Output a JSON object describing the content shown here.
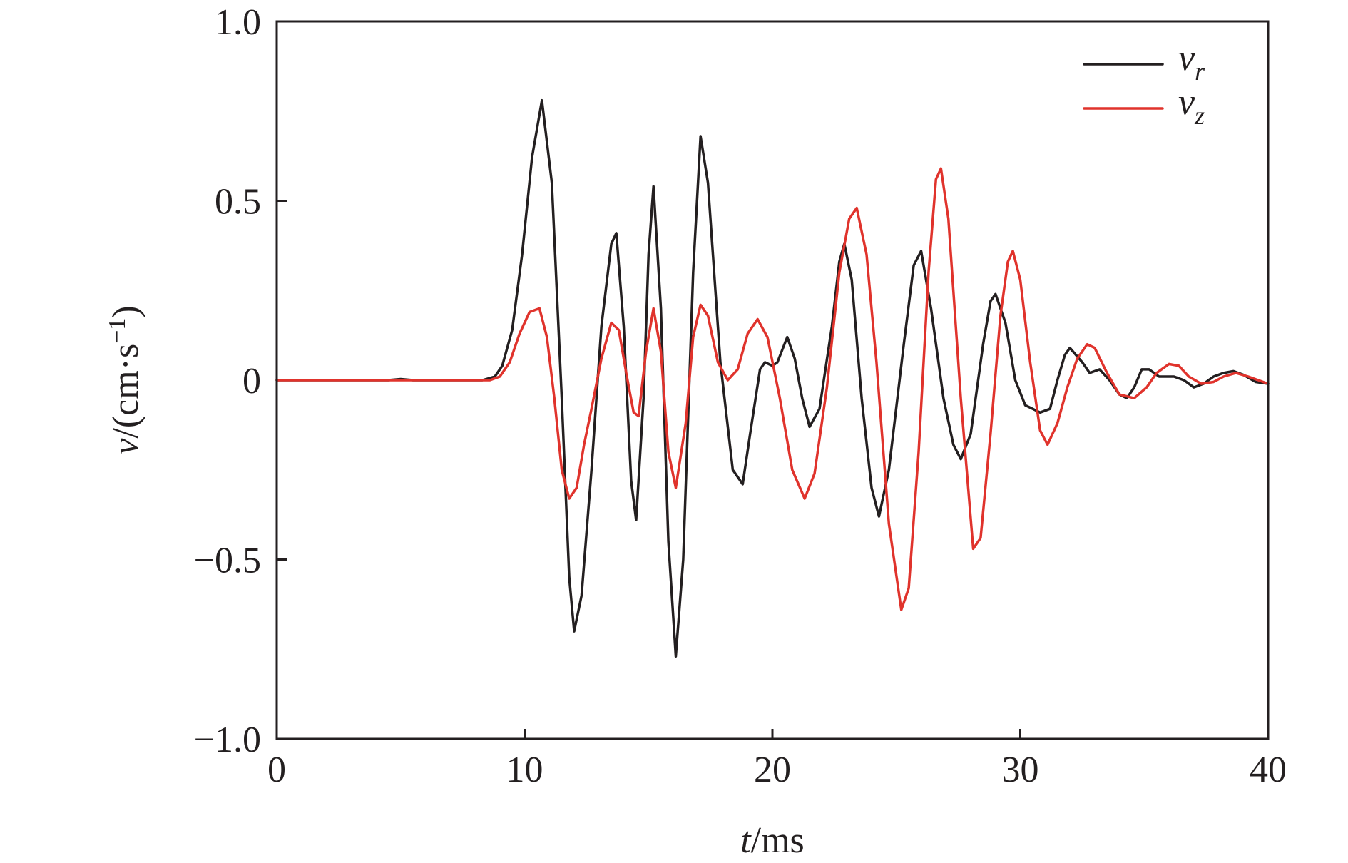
{
  "chart_data": {
    "type": "line",
    "x_axis": {
      "label_var": "t",
      "label_unit": "/ms",
      "range": [
        0,
        40
      ],
      "ticks": [
        0,
        10,
        20,
        30,
        40
      ],
      "tick_labels": [
        "0",
        "10",
        "20",
        "30",
        "40"
      ]
    },
    "y_axis": {
      "label_var": "v",
      "label_unit_prefix": "/(cm·s",
      "label_unit_exp": "−1",
      "label_unit_suffix": ")",
      "range": [
        -1.0,
        1.0
      ],
      "ticks": [
        -1.0,
        -0.5,
        0,
        0.5,
        1.0
      ],
      "tick_labels": [
        "−1.0",
        "−0.5",
        "0",
        "0.5",
        "1.0"
      ]
    },
    "grid": false,
    "legend": {
      "placement": "top-right",
      "entries": [
        {
          "base": "v",
          "sub": "r",
          "color": "#231f20"
        },
        {
          "base": "v",
          "sub": "z",
          "color": "#e0332c"
        }
      ]
    },
    "series": [
      {
        "key": "v_r",
        "color": "#231f20",
        "points": [
          [
            0,
            0
          ],
          [
            4.5,
            0
          ],
          [
            5,
            0.003
          ],
          [
            5.5,
            0
          ],
          [
            8.3,
            0
          ],
          [
            8.8,
            0.01
          ],
          [
            9.1,
            0.04
          ],
          [
            9.5,
            0.14
          ],
          [
            9.9,
            0.35
          ],
          [
            10.3,
            0.62
          ],
          [
            10.7,
            0.78
          ],
          [
            11.1,
            0.55
          ],
          [
            11.5,
            -0.05
          ],
          [
            11.8,
            -0.55
          ],
          [
            12.0,
            -0.7
          ],
          [
            12.3,
            -0.6
          ],
          [
            12.7,
            -0.25
          ],
          [
            13.1,
            0.15
          ],
          [
            13.5,
            0.38
          ],
          [
            13.7,
            0.41
          ],
          [
            14.0,
            0.15
          ],
          [
            14.3,
            -0.28
          ],
          [
            14.5,
            -0.39
          ],
          [
            14.8,
            -0.05
          ],
          [
            15.0,
            0.35
          ],
          [
            15.2,
            0.54
          ],
          [
            15.5,
            0.2
          ],
          [
            15.8,
            -0.45
          ],
          [
            16.1,
            -0.77
          ],
          [
            16.4,
            -0.5
          ],
          [
            16.8,
            0.3
          ],
          [
            17.1,
            0.68
          ],
          [
            17.4,
            0.55
          ],
          [
            17.9,
            0.05
          ],
          [
            18.4,
            -0.25
          ],
          [
            18.8,
            -0.29
          ],
          [
            19.1,
            -0.15
          ],
          [
            19.5,
            0.03
          ],
          [
            19.7,
            0.05
          ],
          [
            20.0,
            0.04
          ],
          [
            20.2,
            0.05
          ],
          [
            20.6,
            0.12
          ],
          [
            20.9,
            0.06
          ],
          [
            21.2,
            -0.05
          ],
          [
            21.5,
            -0.13
          ],
          [
            21.9,
            -0.08
          ],
          [
            22.4,
            0.15
          ],
          [
            22.7,
            0.33
          ],
          [
            22.9,
            0.38
          ],
          [
            23.2,
            0.28
          ],
          [
            23.6,
            -0.05
          ],
          [
            24.0,
            -0.3
          ],
          [
            24.3,
            -0.38
          ],
          [
            24.7,
            -0.25
          ],
          [
            25.3,
            0.1
          ],
          [
            25.7,
            0.32
          ],
          [
            26.0,
            0.36
          ],
          [
            26.4,
            0.2
          ],
          [
            26.9,
            -0.05
          ],
          [
            27.3,
            -0.18
          ],
          [
            27.6,
            -0.22
          ],
          [
            28.0,
            -0.15
          ],
          [
            28.5,
            0.1
          ],
          [
            28.8,
            0.22
          ],
          [
            29.0,
            0.24
          ],
          [
            29.4,
            0.16
          ],
          [
            29.8,
            0.0
          ],
          [
            30.2,
            -0.07
          ],
          [
            30.5,
            -0.08
          ],
          [
            30.8,
            -0.09
          ],
          [
            31.2,
            -0.08
          ],
          [
            31.5,
            0.0
          ],
          [
            31.8,
            0.07
          ],
          [
            32.0,
            0.09
          ],
          [
            32.5,
            0.05
          ],
          [
            32.8,
            0.02
          ],
          [
            33.2,
            0.03
          ],
          [
            33.6,
            0.0
          ],
          [
            34.0,
            -0.04
          ],
          [
            34.3,
            -0.05
          ],
          [
            34.6,
            -0.02
          ],
          [
            34.9,
            0.03
          ],
          [
            35.2,
            0.03
          ],
          [
            35.6,
            0.01
          ],
          [
            36.2,
            0.01
          ],
          [
            36.6,
            0.0
          ],
          [
            37.0,
            -0.02
          ],
          [
            37.4,
            -0.01
          ],
          [
            37.8,
            0.01
          ],
          [
            38.2,
            0.02
          ],
          [
            38.6,
            0.025
          ],
          [
            39.0,
            0.015
          ],
          [
            39.5,
            -0.005
          ],
          [
            40,
            -0.01
          ]
        ]
      },
      {
        "key": "v_z",
        "color": "#e0332c",
        "points": [
          [
            0,
            0
          ],
          [
            8.6,
            0
          ],
          [
            9.0,
            0.01
          ],
          [
            9.4,
            0.05
          ],
          [
            9.8,
            0.13
          ],
          [
            10.2,
            0.19
          ],
          [
            10.6,
            0.2
          ],
          [
            10.9,
            0.12
          ],
          [
            11.2,
            -0.05
          ],
          [
            11.5,
            -0.25
          ],
          [
            11.8,
            -0.33
          ],
          [
            12.1,
            -0.3
          ],
          [
            12.4,
            -0.18
          ],
          [
            12.7,
            -0.08
          ],
          [
            13.1,
            0.06
          ],
          [
            13.5,
            0.16
          ],
          [
            13.8,
            0.14
          ],
          [
            14.1,
            0.02
          ],
          [
            14.4,
            -0.09
          ],
          [
            14.6,
            -0.1
          ],
          [
            14.9,
            0.08
          ],
          [
            15.2,
            0.2
          ],
          [
            15.5,
            0.08
          ],
          [
            15.8,
            -0.2
          ],
          [
            16.1,
            -0.3
          ],
          [
            16.5,
            -0.12
          ],
          [
            16.8,
            0.12
          ],
          [
            17.1,
            0.21
          ],
          [
            17.4,
            0.18
          ],
          [
            17.8,
            0.05
          ],
          [
            18.2,
            0.0
          ],
          [
            18.6,
            0.03
          ],
          [
            19.0,
            0.13
          ],
          [
            19.4,
            0.17
          ],
          [
            19.8,
            0.12
          ],
          [
            20.3,
            -0.05
          ],
          [
            20.8,
            -0.25
          ],
          [
            21.3,
            -0.33
          ],
          [
            21.7,
            -0.26
          ],
          [
            22.2,
            -0.02
          ],
          [
            22.7,
            0.3
          ],
          [
            23.1,
            0.45
          ],
          [
            23.4,
            0.48
          ],
          [
            23.8,
            0.35
          ],
          [
            24.2,
            0.05
          ],
          [
            24.7,
            -0.4
          ],
          [
            25.2,
            -0.64
          ],
          [
            25.5,
            -0.58
          ],
          [
            25.9,
            -0.2
          ],
          [
            26.3,
            0.3
          ],
          [
            26.6,
            0.56
          ],
          [
            26.8,
            0.59
          ],
          [
            27.1,
            0.45
          ],
          [
            27.6,
            -0.05
          ],
          [
            28.1,
            -0.47
          ],
          [
            28.4,
            -0.44
          ],
          [
            28.8,
            -0.15
          ],
          [
            29.2,
            0.18
          ],
          [
            29.5,
            0.33
          ],
          [
            29.7,
            0.36
          ],
          [
            30.0,
            0.28
          ],
          [
            30.4,
            0.05
          ],
          [
            30.8,
            -0.14
          ],
          [
            31.1,
            -0.18
          ],
          [
            31.5,
            -0.12
          ],
          [
            31.9,
            -0.02
          ],
          [
            32.3,
            0.06
          ],
          [
            32.7,
            0.1
          ],
          [
            33.0,
            0.09
          ],
          [
            33.5,
            0.02
          ],
          [
            34.0,
            -0.04
          ],
          [
            34.6,
            -0.05
          ],
          [
            35.1,
            -0.02
          ],
          [
            35.5,
            0.02
          ],
          [
            36.0,
            0.045
          ],
          [
            36.4,
            0.04
          ],
          [
            36.8,
            0.01
          ],
          [
            37.3,
            -0.01
          ],
          [
            37.8,
            -0.005
          ],
          [
            38.2,
            0.01
          ],
          [
            38.7,
            0.02
          ],
          [
            39.2,
            0.01
          ],
          [
            40,
            -0.01
          ]
        ]
      }
    ]
  }
}
